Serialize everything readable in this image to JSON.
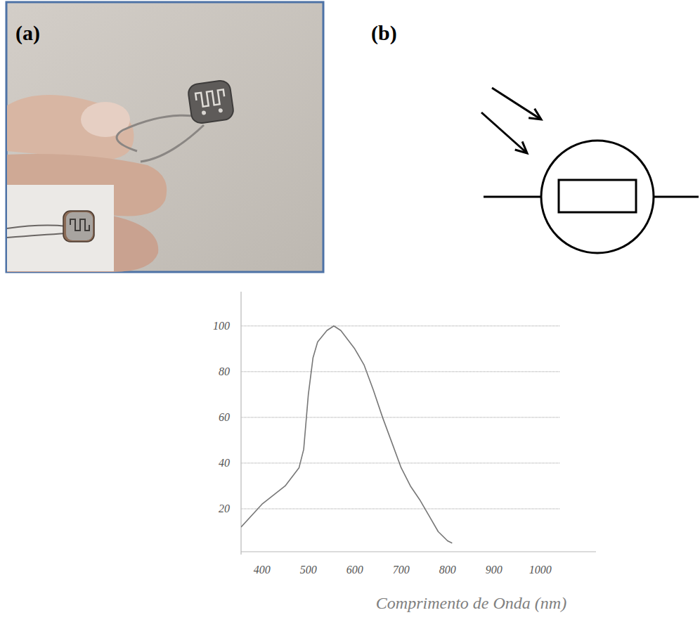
{
  "panels": [
    {
      "label": "(a)"
    },
    {
      "label": "(b)"
    }
  ],
  "chart_data": {
    "type": "line",
    "x_label": "Comprimento de Onda (nm)",
    "x": [
      355,
      400,
      450,
      480,
      490,
      500,
      510,
      520,
      540,
      555,
      570,
      600,
      620,
      640,
      660,
      680,
      700,
      720,
      740,
      760,
      780,
      800,
      810
    ],
    "values": [
      12,
      22,
      30,
      38,
      46,
      70,
      86,
      93,
      98,
      100,
      98,
      90,
      83,
      72,
      60,
      49,
      38,
      30,
      24,
      17,
      10,
      6,
      5
    ],
    "color": "#777777",
    "xlim": [
      355,
      1120
    ],
    "ylim": [
      0,
      115
    ],
    "xticks": [
      400,
      500,
      600,
      700,
      800,
      900,
      1000
    ],
    "yticks": [
      20,
      40,
      60,
      80,
      100
    ],
    "grid": true
  }
}
